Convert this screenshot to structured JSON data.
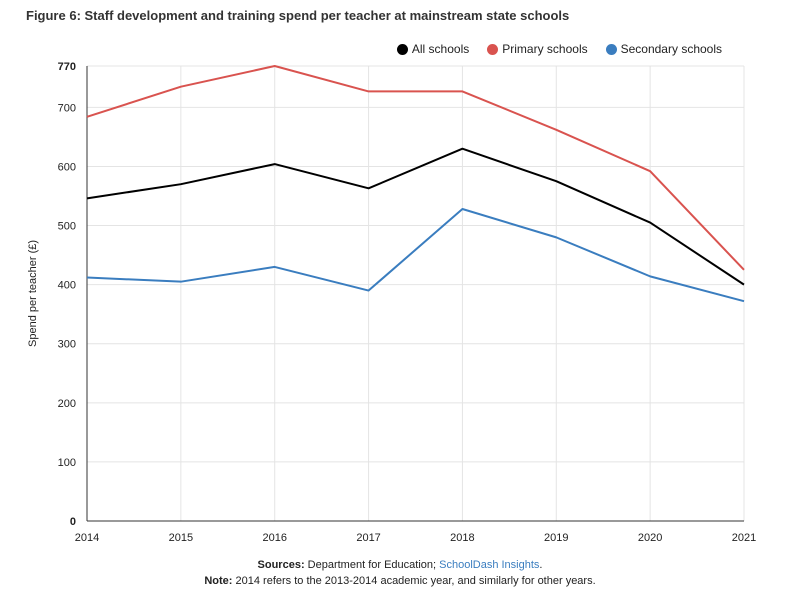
{
  "chart_data": {
    "type": "line",
    "title": "Figure 6: Staff development and training spend per teacher at mainstream state schools",
    "xlabel": "",
    "ylabel": "Spend per teacher (£)",
    "x": [
      "2014",
      "2015",
      "2016",
      "2017",
      "2018",
      "2019",
      "2020",
      "2021"
    ],
    "ylim": [
      0,
      770
    ],
    "yticks": [
      "0",
      "100",
      "200",
      "300",
      "400",
      "500",
      "600",
      "700",
      "770"
    ],
    "grid": true,
    "legend_position": "top-right",
    "series": [
      {
        "name": "All schools",
        "color": "#000000",
        "values": [
          546,
          570,
          604,
          563,
          630,
          575,
          505,
          400
        ]
      },
      {
        "name": "Primary schools",
        "color": "#d9534f",
        "values": [
          684,
          735,
          770,
          727,
          727,
          662,
          592,
          425
        ]
      },
      {
        "name": "Secondary schools",
        "color": "#3a7dbf",
        "values": [
          412,
          405,
          430,
          390,
          528,
          480,
          414,
          372
        ]
      }
    ]
  },
  "footer": {
    "sources_label": "Sources:",
    "sources_text": " Department for Education; ",
    "sources_link": "SchoolDash Insights",
    "sources_end": ".",
    "note_label": "Note:",
    "note_text": " 2014 refers to the 2013-2014 academic year, and similarly for other years."
  }
}
